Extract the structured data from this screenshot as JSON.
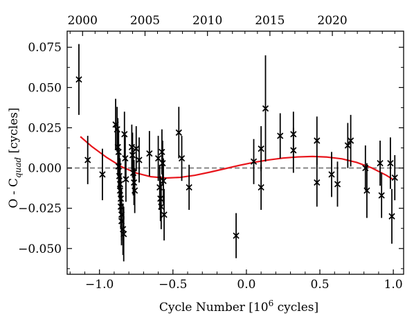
{
  "chart_data": {
    "type": "scatter",
    "xlabel": "Cycle Number [10⁶ cycles]",
    "ylabel_main": "O - C",
    "ylabel_sub": "quad",
    "ylabel_unit": " [cycles]",
    "xlim": [
      -1.22,
      1.07
    ],
    "ylim": [
      -0.066,
      0.085
    ],
    "x_ticks": [
      -1.0,
      -0.5,
      0.0,
      0.5,
      1.0
    ],
    "x_tick_labels": [
      "−1.0",
      "−0.5",
      "0.0",
      "0.5",
      "1.0"
    ],
    "y_ticks": [
      -0.05,
      -0.025,
      0.0,
      0.025,
      0.05,
      0.075
    ],
    "y_tick_labels": [
      "−0.050",
      "−0.025",
      "0.000",
      "0.025",
      "0.050",
      "0.075"
    ],
    "top_axis": {
      "label_positions_x": [
        -1.115,
        -0.69,
        -0.265,
        0.16,
        0.585
      ],
      "labels": [
        "2000",
        "2005",
        "2010",
        "2015",
        "2020"
      ]
    },
    "reference_line": {
      "y": 0.0,
      "style": "dashed",
      "color": "#808080"
    },
    "fit_curve": {
      "color": "#e8141b",
      "x": [
        -1.13,
        -1.05,
        -0.95,
        -0.85,
        -0.75,
        -0.65,
        -0.55,
        -0.45,
        -0.35,
        -0.25,
        -0.15,
        -0.05,
        0.05,
        0.15,
        0.25,
        0.35,
        0.45,
        0.55,
        0.65,
        0.75,
        0.85,
        0.95,
        1.0
      ],
      "y": [
        0.0195,
        0.0132,
        0.0065,
        0.0008,
        -0.0031,
        -0.0054,
        -0.0062,
        -0.0058,
        -0.0045,
        -0.0026,
        -0.0005,
        0.0016,
        0.0035,
        0.005,
        0.0062,
        0.0069,
        0.0072,
        0.0068,
        0.0057,
        0.0035,
        0.0002,
        -0.0044,
        -0.0072
      ]
    },
    "series": [
      {
        "marker": "x",
        "color": "#000000",
        "points": [
          {
            "x": -1.14,
            "y": 0.055,
            "err": 0.022
          },
          {
            "x": -1.08,
            "y": 0.005,
            "err": 0.015
          },
          {
            "x": -0.98,
            "y": -0.004,
            "err": 0.016
          },
          {
            "x": -0.89,
            "y": 0.027,
            "err": 0.016
          },
          {
            "x": -0.88,
            "y": 0.024,
            "err": 0.014
          },
          {
            "x": -0.875,
            "y": 0.013,
            "err": 0.018
          },
          {
            "x": -0.87,
            "y": 0.01,
            "err": 0.014
          },
          {
            "x": -0.87,
            "y": 0.001,
            "err": 0.014
          },
          {
            "x": -0.865,
            "y": -0.005,
            "err": 0.014
          },
          {
            "x": -0.86,
            "y": -0.01,
            "err": 0.016
          },
          {
            "x": -0.86,
            "y": -0.014,
            "err": 0.014
          },
          {
            "x": -0.855,
            "y": -0.019,
            "err": 0.015
          },
          {
            "x": -0.855,
            "y": -0.024,
            "err": 0.014
          },
          {
            "x": -0.85,
            "y": -0.029,
            "err": 0.016
          },
          {
            "x": -0.85,
            "y": -0.033,
            "err": 0.015
          },
          {
            "x": -0.84,
            "y": -0.038,
            "err": 0.016
          },
          {
            "x": -0.835,
            "y": -0.041,
            "err": 0.017
          },
          {
            "x": -0.83,
            "y": 0.021,
            "err": 0.014
          },
          {
            "x": -0.825,
            "y": 0.006,
            "err": 0.014
          },
          {
            "x": -0.82,
            "y": -0.007,
            "err": 0.014
          },
          {
            "x": -0.78,
            "y": 0.013,
            "err": 0.014
          },
          {
            "x": -0.775,
            "y": 0.008,
            "err": 0.014
          },
          {
            "x": -0.77,
            "y": -0.003,
            "err": 0.014
          },
          {
            "x": -0.765,
            "y": -0.009,
            "err": 0.014
          },
          {
            "x": -0.76,
            "y": -0.014,
            "err": 0.014
          },
          {
            "x": -0.75,
            "y": 0.012,
            "err": 0.014
          },
          {
            "x": -0.73,
            "y": 0.005,
            "err": 0.014
          },
          {
            "x": -0.66,
            "y": 0.009,
            "err": 0.014
          },
          {
            "x": -0.6,
            "y": 0.006,
            "err": 0.014
          },
          {
            "x": -0.59,
            "y": -0.012,
            "err": 0.014
          },
          {
            "x": -0.585,
            "y": -0.019,
            "err": 0.014
          },
          {
            "x": -0.58,
            "y": -0.024,
            "err": 0.014
          },
          {
            "x": -0.575,
            "y": 0.01,
            "err": 0.014
          },
          {
            "x": -0.57,
            "y": 0.003,
            "err": 0.014
          },
          {
            "x": -0.565,
            "y": -0.008,
            "err": 0.014
          },
          {
            "x": -0.56,
            "y": -0.029,
            "err": 0.016
          },
          {
            "x": -0.46,
            "y": 0.022,
            "err": 0.016
          },
          {
            "x": -0.44,
            "y": 0.006,
            "err": 0.014
          },
          {
            "x": -0.39,
            "y": -0.012,
            "err": 0.014
          },
          {
            "x": -0.07,
            "y": -0.042,
            "err": 0.014
          },
          {
            "x": 0.05,
            "y": 0.004,
            "err": 0.014
          },
          {
            "x": 0.1,
            "y": 0.012,
            "err": 0.014
          },
          {
            "x": 0.1,
            "y": -0.012,
            "err": 0.014
          },
          {
            "x": 0.13,
            "y": 0.037,
            "err": 0.033
          },
          {
            "x": 0.23,
            "y": 0.02,
            "err": 0.014
          },
          {
            "x": 0.32,
            "y": 0.021,
            "err": 0.014
          },
          {
            "x": 0.32,
            "y": 0.011,
            "err": 0.014
          },
          {
            "x": 0.48,
            "y": 0.017,
            "err": 0.015
          },
          {
            "x": 0.48,
            "y": -0.009,
            "err": 0.015
          },
          {
            "x": 0.58,
            "y": -0.004,
            "err": 0.014
          },
          {
            "x": 0.62,
            "y": -0.01,
            "err": 0.014
          },
          {
            "x": 0.69,
            "y": 0.014,
            "err": 0.014
          },
          {
            "x": 0.71,
            "y": 0.017,
            "err": 0.016
          },
          {
            "x": 0.81,
            "y": 0.0,
            "err": 0.014
          },
          {
            "x": 0.82,
            "y": -0.014,
            "err": 0.017
          },
          {
            "x": 0.91,
            "y": 0.003,
            "err": 0.014
          },
          {
            "x": 0.92,
            "y": -0.017,
            "err": 0.014
          },
          {
            "x": 0.98,
            "y": 0.003,
            "err": 0.016
          },
          {
            "x": 0.99,
            "y": -0.03,
            "err": 0.017
          },
          {
            "x": 1.01,
            "y": -0.006,
            "err": 0.014
          }
        ]
      }
    ]
  }
}
